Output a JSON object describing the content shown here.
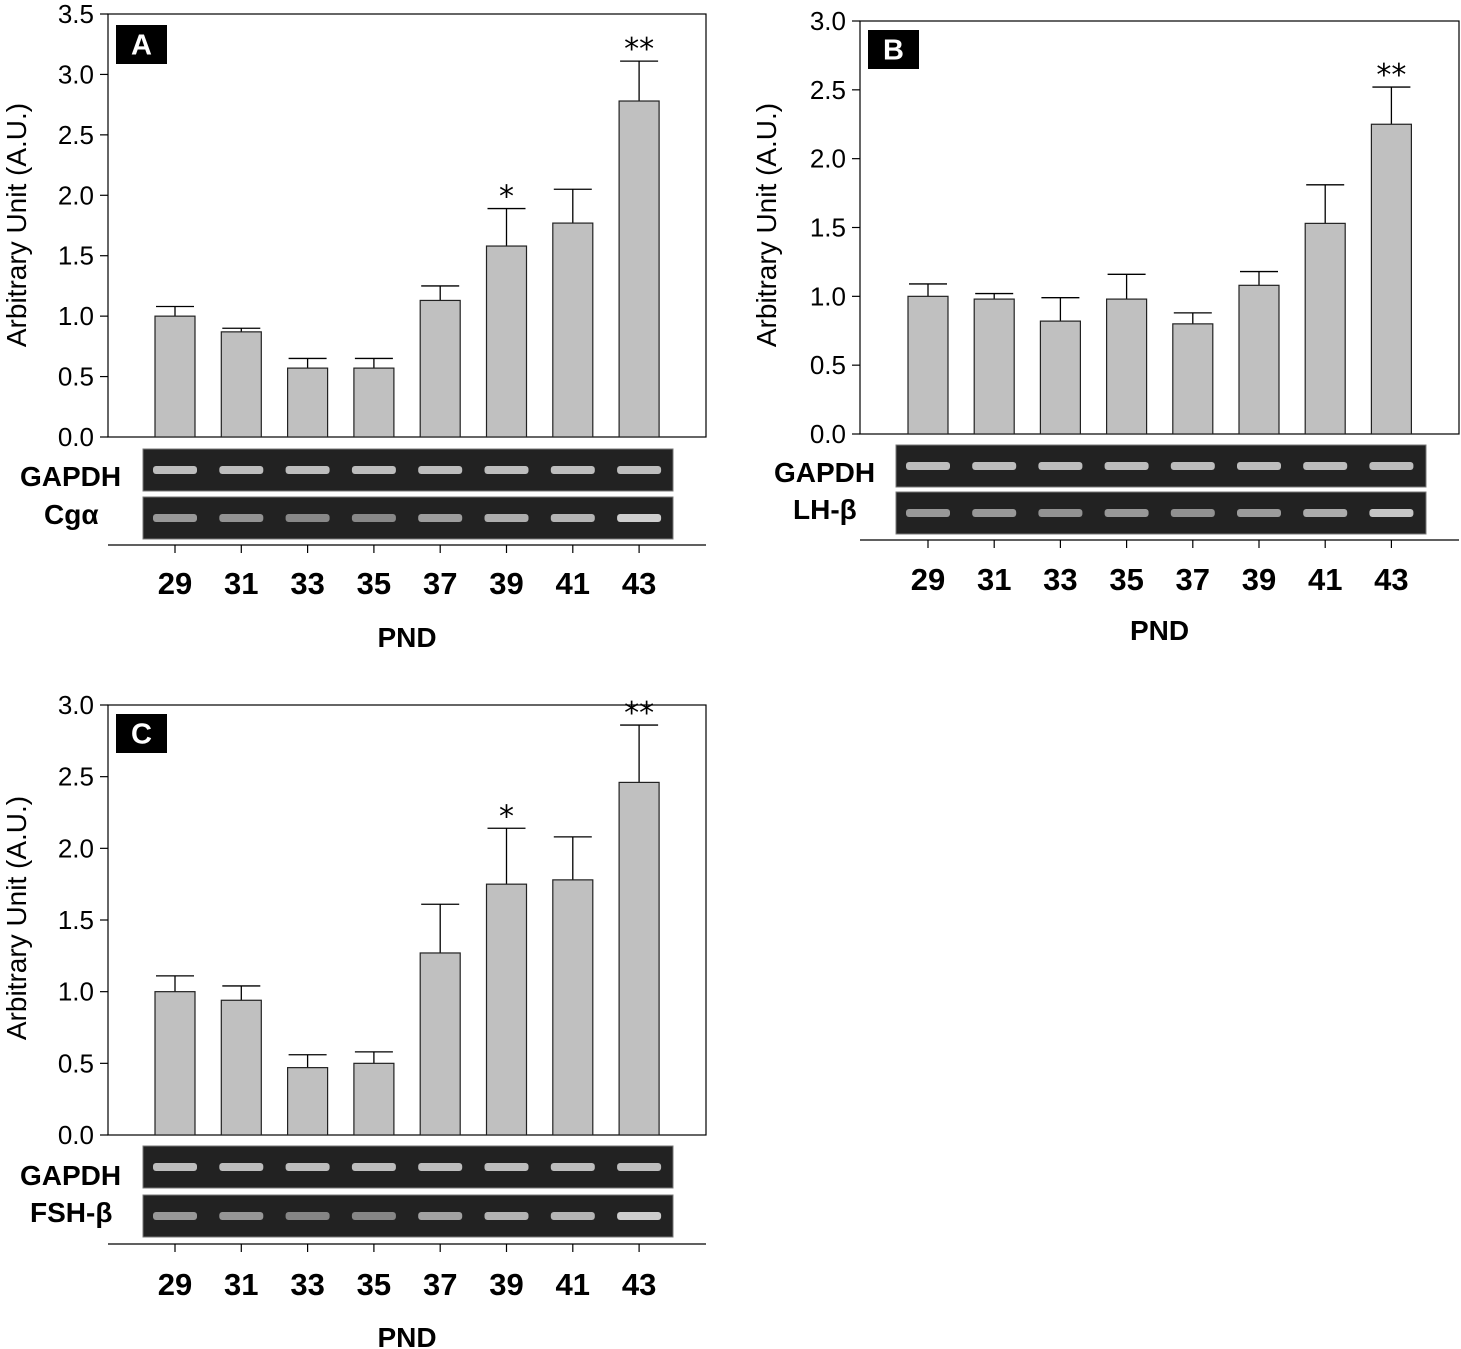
{
  "chart_data": [
    {
      "type": "bar",
      "panel": "A",
      "ylabel": "Arbitrary Unit (A.U.)",
      "xlabel": "PND",
      "ylim": [
        0,
        3.5
      ],
      "yticks": [
        "0.0",
        "0.5",
        "1.0",
        "1.5",
        "2.0",
        "2.5",
        "3.0",
        "3.5"
      ],
      "categories": [
        "29",
        "31",
        "33",
        "35",
        "37",
        "39",
        "41",
        "43"
      ],
      "values": [
        1.0,
        0.87,
        0.57,
        0.57,
        1.13,
        1.58,
        1.77,
        2.78
      ],
      "errors": [
        0.08,
        0.03,
        0.08,
        0.08,
        0.12,
        0.31,
        0.28,
        0.33
      ],
      "significance": [
        "",
        "",
        "",
        "",
        "",
        "*",
        "",
        "**"
      ],
      "gel_rows": [
        "GAPDH",
        "Cgα"
      ]
    },
    {
      "type": "bar",
      "panel": "B",
      "ylabel": "Arbitrary Unit (A.U.)",
      "xlabel": "PND",
      "ylim": [
        0,
        3.0
      ],
      "yticks": [
        "0.0",
        "0.5",
        "1.0",
        "1.5",
        "2.0",
        "2.5",
        "3.0"
      ],
      "categories": [
        "29",
        "31",
        "33",
        "35",
        "37",
        "39",
        "41",
        "43"
      ],
      "values": [
        1.0,
        0.98,
        0.82,
        0.98,
        0.8,
        1.08,
        1.53,
        2.25
      ],
      "errors": [
        0.09,
        0.04,
        0.17,
        0.18,
        0.08,
        0.1,
        0.28,
        0.27
      ],
      "significance": [
        "",
        "",
        "",
        "",
        "",
        "",
        "",
        "**"
      ],
      "gel_rows": [
        "GAPDH",
        "LH-β"
      ]
    },
    {
      "type": "bar",
      "panel": "C",
      "ylabel": "Arbitrary Unit (A.U.)",
      "xlabel": "PND",
      "ylim": [
        0,
        3.0
      ],
      "yticks": [
        "0.0",
        "0.5",
        "1.0",
        "1.5",
        "2.0",
        "2.5",
        "3.0"
      ],
      "categories": [
        "29",
        "31",
        "33",
        "35",
        "37",
        "39",
        "41",
        "43"
      ],
      "values": [
        1.0,
        0.94,
        0.47,
        0.5,
        1.27,
        1.75,
        1.78,
        2.46
      ],
      "errors": [
        0.11,
        0.1,
        0.09,
        0.08,
        0.34,
        0.39,
        0.3,
        0.4
      ],
      "significance": [
        "",
        "",
        "",
        "",
        "",
        "*",
        "",
        "**"
      ],
      "gel_rows": [
        "GAPDH",
        "FSH-β"
      ]
    }
  ]
}
